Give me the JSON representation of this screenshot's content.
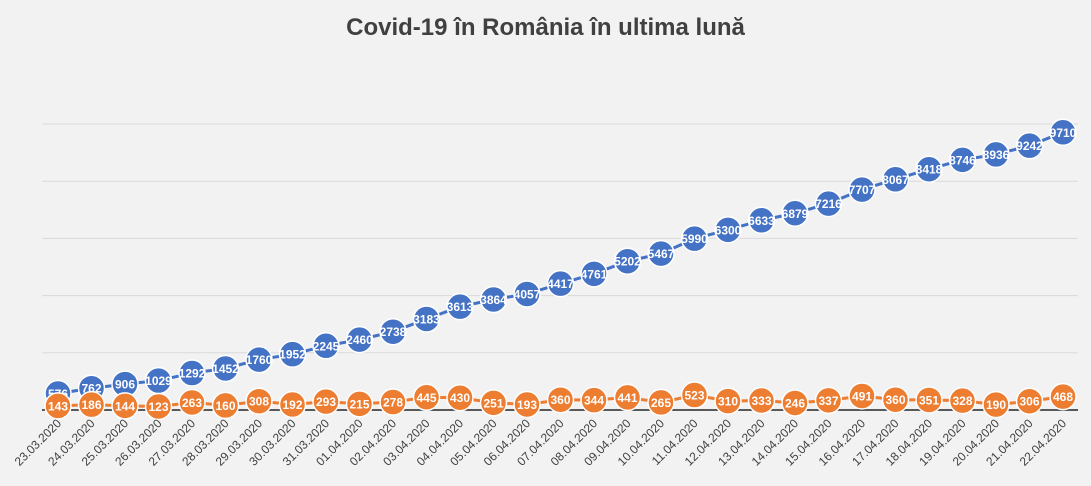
{
  "chart_data": {
    "type": "line",
    "title": "Covid-19 în România în ultima lună",
    "xlabel": "",
    "ylabel": "",
    "categories": [
      "23.03.2020",
      "24.03.2020",
      "25.03.2020",
      "26.03.2020",
      "27.03.2020",
      "28.03.2020",
      "29.03.2020",
      "30.03.2020",
      "31.03.2020",
      "01.04.2020",
      "02.04.2020",
      "03.04.2020",
      "04.04.2020",
      "05.04.2020",
      "06.04.2020",
      "07.04.2020",
      "08.04.2020",
      "09.04.2020",
      "10.04.2020",
      "11.04.2020",
      "12.04.2020",
      "13.04.2020",
      "14.04.2020",
      "15.04.2020",
      "16.04.2020",
      "17.04.2020",
      "18.04.2020",
      "19.04.2020",
      "20.04.2020",
      "21.04.2020",
      "22.04.2020"
    ],
    "series": [
      {
        "color": "#4472c4",
        "values": [
          576,
          762,
          906,
          1029,
          1292,
          1452,
          1760,
          1952,
          2245,
          2460,
          2738,
          3183,
          3613,
          3864,
          4057,
          4417,
          4761,
          5202,
          5467,
          5990,
          6300,
          6633,
          6879,
          7216,
          7707,
          8067,
          8418,
          8746,
          8936,
          9242,
          9710
        ]
      },
      {
        "color": "#ed7d31",
        "values": [
          143,
          186,
          144,
          123,
          263,
          160,
          308,
          192,
          293,
          215,
          278,
          445,
          430,
          251,
          193,
          360,
          344,
          441,
          265,
          523,
          310,
          333,
          246,
          337,
          491,
          360,
          351,
          328,
          190,
          306,
          468
        ]
      }
    ],
    "grid": true,
    "legend": "none",
    "data_label_color": "#ffffff"
  }
}
